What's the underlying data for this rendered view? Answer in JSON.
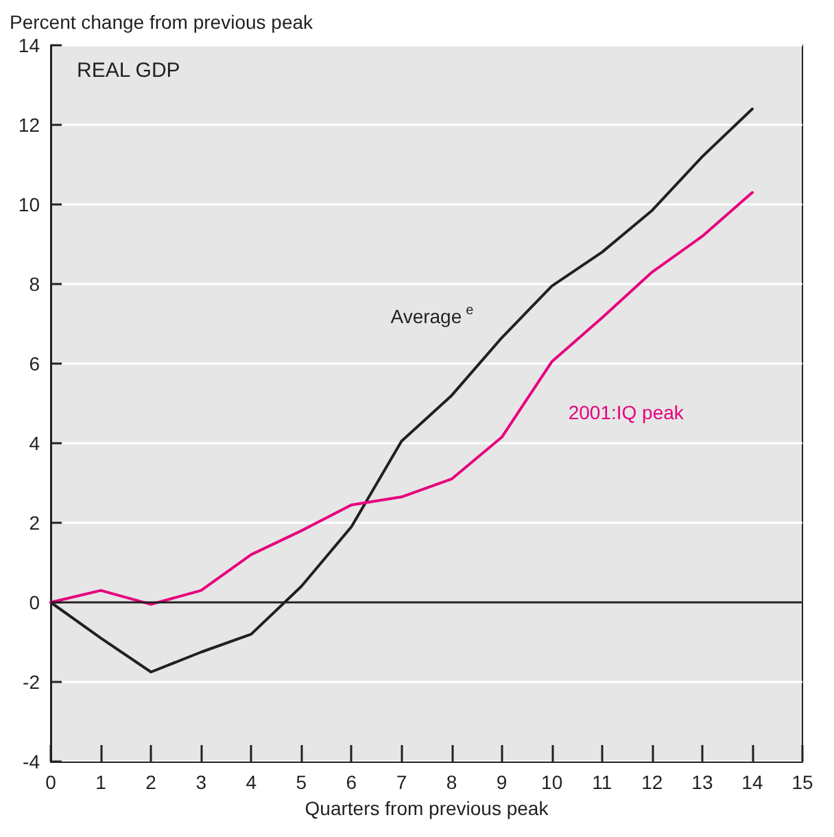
{
  "chart_data": {
    "type": "line",
    "title": "REAL GDP",
    "ylabel": "Percent change from previous peak",
    "xlabel": "Quarters from previous peak",
    "x": [
      0,
      1,
      2,
      3,
      4,
      5,
      6,
      7,
      8,
      9,
      10,
      11,
      12,
      13,
      14
    ],
    "series": [
      {
        "name": "Average$^{e}$",
        "color": "#231f20",
        "values": [
          0,
          -0.9,
          -1.75,
          -1.25,
          -0.8,
          0.4,
          1.9,
          4.05,
          5.2,
          6.65,
          7.95,
          8.8,
          9.85,
          11.2,
          12.4
        ]
      },
      {
        "name": "2001:IQ peak",
        "color": "#e6007e",
        "values": [
          0,
          0.3,
          -0.05,
          0.3,
          1.2,
          1.8,
          2.45,
          2.65,
          3.1,
          4.15,
          6.05,
          7.15,
          8.3,
          9.2,
          10.3
        ]
      }
    ],
    "xlim": [
      0,
      15
    ],
    "xticks": [
      0,
      1,
      2,
      3,
      4,
      5,
      6,
      7,
      8,
      9,
      10,
      11,
      12,
      13,
      14,
      15
    ],
    "ylim": [
      -4,
      14
    ],
    "yticks": [
      -4,
      -2,
      0,
      2,
      4,
      6,
      8,
      10,
      12,
      14
    ],
    "ref_lines": [
      {
        "axis": "y",
        "value": 0,
        "color": "#231f20"
      }
    ],
    "grid": "y",
    "legend": false,
    "marker": "none",
    "line_style": "solid"
  }
}
